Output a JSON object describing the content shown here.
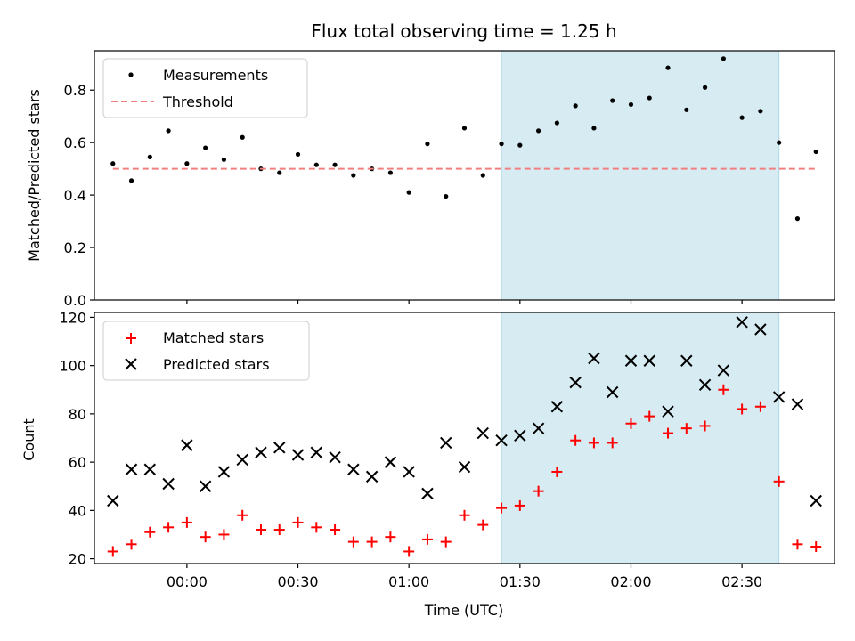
{
  "chart_data": {
    "type": "scatter",
    "title": "Flux total observing time = 1.25 h",
    "xlabel": "Time (UTC)",
    "x_tick_labels": [
      "00:00",
      "00:30",
      "01:00",
      "01:30",
      "02:00",
      "02:30"
    ],
    "x_tick_values": [
      "00:00",
      "00:30",
      "01:00",
      "01:30",
      "02:00",
      "02:30"
    ],
    "xlim": [
      "23:40",
      "02:50"
    ],
    "highlight_span": {
      "start": "01:25",
      "end": "02:40",
      "color": "#add8e6"
    },
    "times": [
      "23:40",
      "23:45",
      "23:50",
      "23:55",
      "00:00",
      "00:05",
      "00:10",
      "00:15",
      "00:20",
      "00:25",
      "00:30",
      "00:35",
      "00:40",
      "00:45",
      "00:50",
      "00:55",
      "01:00",
      "01:05",
      "01:10",
      "01:15",
      "01:20",
      "01:25",
      "01:30",
      "01:35",
      "01:40",
      "01:45",
      "01:50",
      "01:55",
      "02:00",
      "02:05",
      "02:10",
      "02:15",
      "02:20",
      "02:25",
      "02:30",
      "02:35",
      "02:40",
      "02:45",
      "02:50"
    ],
    "panels": [
      {
        "ylabel": "Matched/Predicted stars",
        "ylim": [
          0,
          0.95
        ],
        "yticks": [
          0.0,
          0.2,
          0.4,
          0.6,
          0.8
        ],
        "ytick_labels": [
          "0.0",
          "0.2",
          "0.4",
          "0.6",
          "0.8"
        ],
        "legend_position": "top-left",
        "series": [
          {
            "name": "Measurements",
            "marker": "dot",
            "color": "#000000",
            "values": [
              0.52,
              0.455,
              0.545,
              0.645,
              0.52,
              0.58,
              0.535,
              0.62,
              0.5,
              0.485,
              0.555,
              0.515,
              0.515,
              0.475,
              0.5,
              0.485,
              0.41,
              0.595,
              0.395,
              0.655,
              0.475,
              0.595,
              0.59,
              0.645,
              0.675,
              0.74,
              0.655,
              0.76,
              0.745,
              0.77,
              0.885,
              0.725,
              0.81,
              0.92,
              0.695,
              0.72,
              0.6,
              0.31,
              0.565
            ]
          }
        ],
        "threshold": {
          "name": "Threshold",
          "value": 0.5,
          "color": "#f08080",
          "style": "dashed"
        }
      },
      {
        "ylabel": "Count",
        "ylim": [
          18,
          122
        ],
        "yticks": [
          20,
          40,
          60,
          80,
          100,
          120
        ],
        "ytick_labels": [
          "20",
          "40",
          "60",
          "80",
          "100",
          "120"
        ],
        "legend_position": "top-left",
        "series": [
          {
            "name": "Matched stars",
            "marker": "plus",
            "color": "#ff0000",
            "values": [
              23,
              26,
              31,
              33,
              35,
              29,
              30,
              38,
              32,
              32,
              35,
              33,
              32,
              27,
              27,
              29,
              23,
              28,
              27,
              38,
              34,
              41,
              42,
              48,
              56,
              69,
              68,
              68,
              76,
              79,
              72,
              74,
              75,
              90,
              82,
              83,
              52,
              26,
              25
            ]
          },
          {
            "name": "Predicted stars",
            "marker": "x",
            "color": "#000000",
            "values": [
              44,
              57,
              57,
              51,
              67,
              50,
              56,
              61,
              64,
              66,
              63,
              64,
              62,
              57,
              54,
              60,
              56,
              47,
              68,
              58,
              72,
              69,
              71,
              74,
              83,
              93,
              103,
              89,
              102,
              102,
              81,
              102,
              92,
              98,
              118,
              115,
              87,
              84,
              44
            ]
          }
        ]
      }
    ]
  }
}
